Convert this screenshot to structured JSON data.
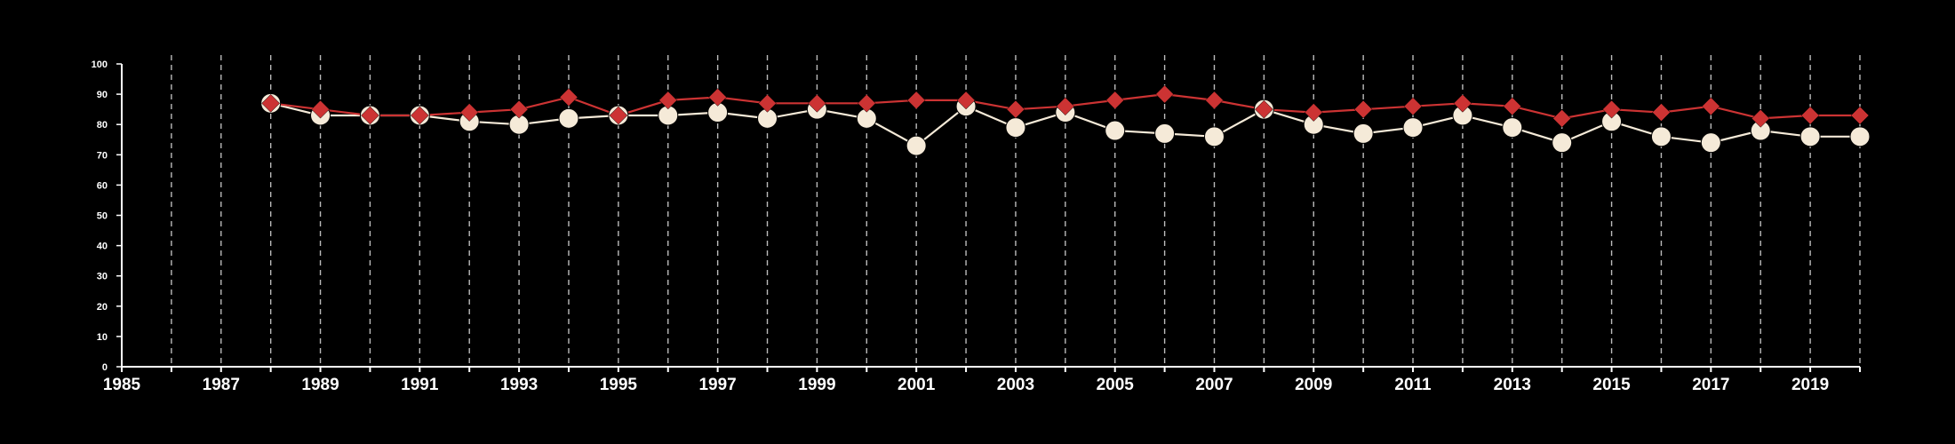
{
  "chart_data": {
    "type": "line",
    "title": "",
    "xlabel": "",
    "ylabel": "",
    "xlim": [
      1985,
      2020
    ],
    "ylim": [
      0,
      100
    ],
    "x_ticks": [
      1985,
      1987,
      1989,
      1991,
      1993,
      1995,
      1997,
      1999,
      2001,
      2003,
      2005,
      2007,
      2009,
      2011,
      2013,
      2015,
      2017,
      2019
    ],
    "y_ticks": [
      0,
      10,
      20,
      30,
      40,
      50,
      60,
      70,
      80,
      90,
      100
    ],
    "grid": "vertical-dashed",
    "colors": {
      "background": "#000000",
      "axis": "#ffffff",
      "grid": "#bbbbbb",
      "series_red": "#cc3333",
      "series_cream": "#f5ead8"
    },
    "x": [
      1988,
      1989,
      1990,
      1991,
      1992,
      1993,
      1994,
      1995,
      1996,
      1997,
      1998,
      1999,
      2000,
      2001,
      2002,
      2003,
      2004,
      2005,
      2006,
      2007,
      2008,
      2009,
      2010,
      2011,
      2012,
      2013,
      2014,
      2015,
      2016,
      2017,
      2018,
      2019,
      2020
    ],
    "series": [
      {
        "marker": "diamond",
        "color": "#cc3333",
        "values": [
          87,
          85,
          83,
          83,
          84,
          85,
          89,
          83,
          88,
          89,
          87,
          87,
          87,
          88,
          88,
          85,
          86,
          88,
          90,
          88,
          85,
          84,
          85,
          86,
          87,
          86,
          82,
          85,
          84,
          86,
          82,
          83,
          83
        ]
      },
      {
        "marker": "circle",
        "color": "#f5ead8",
        "values": [
          87,
          83,
          83,
          83,
          81,
          80,
          82,
          83,
          83,
          84,
          82,
          85,
          82,
          73,
          86,
          79,
          84,
          78,
          77,
          76,
          85,
          80,
          77,
          79,
          83,
          79,
          74,
          81,
          76,
          74,
          78,
          76,
          76
        ]
      }
    ]
  }
}
